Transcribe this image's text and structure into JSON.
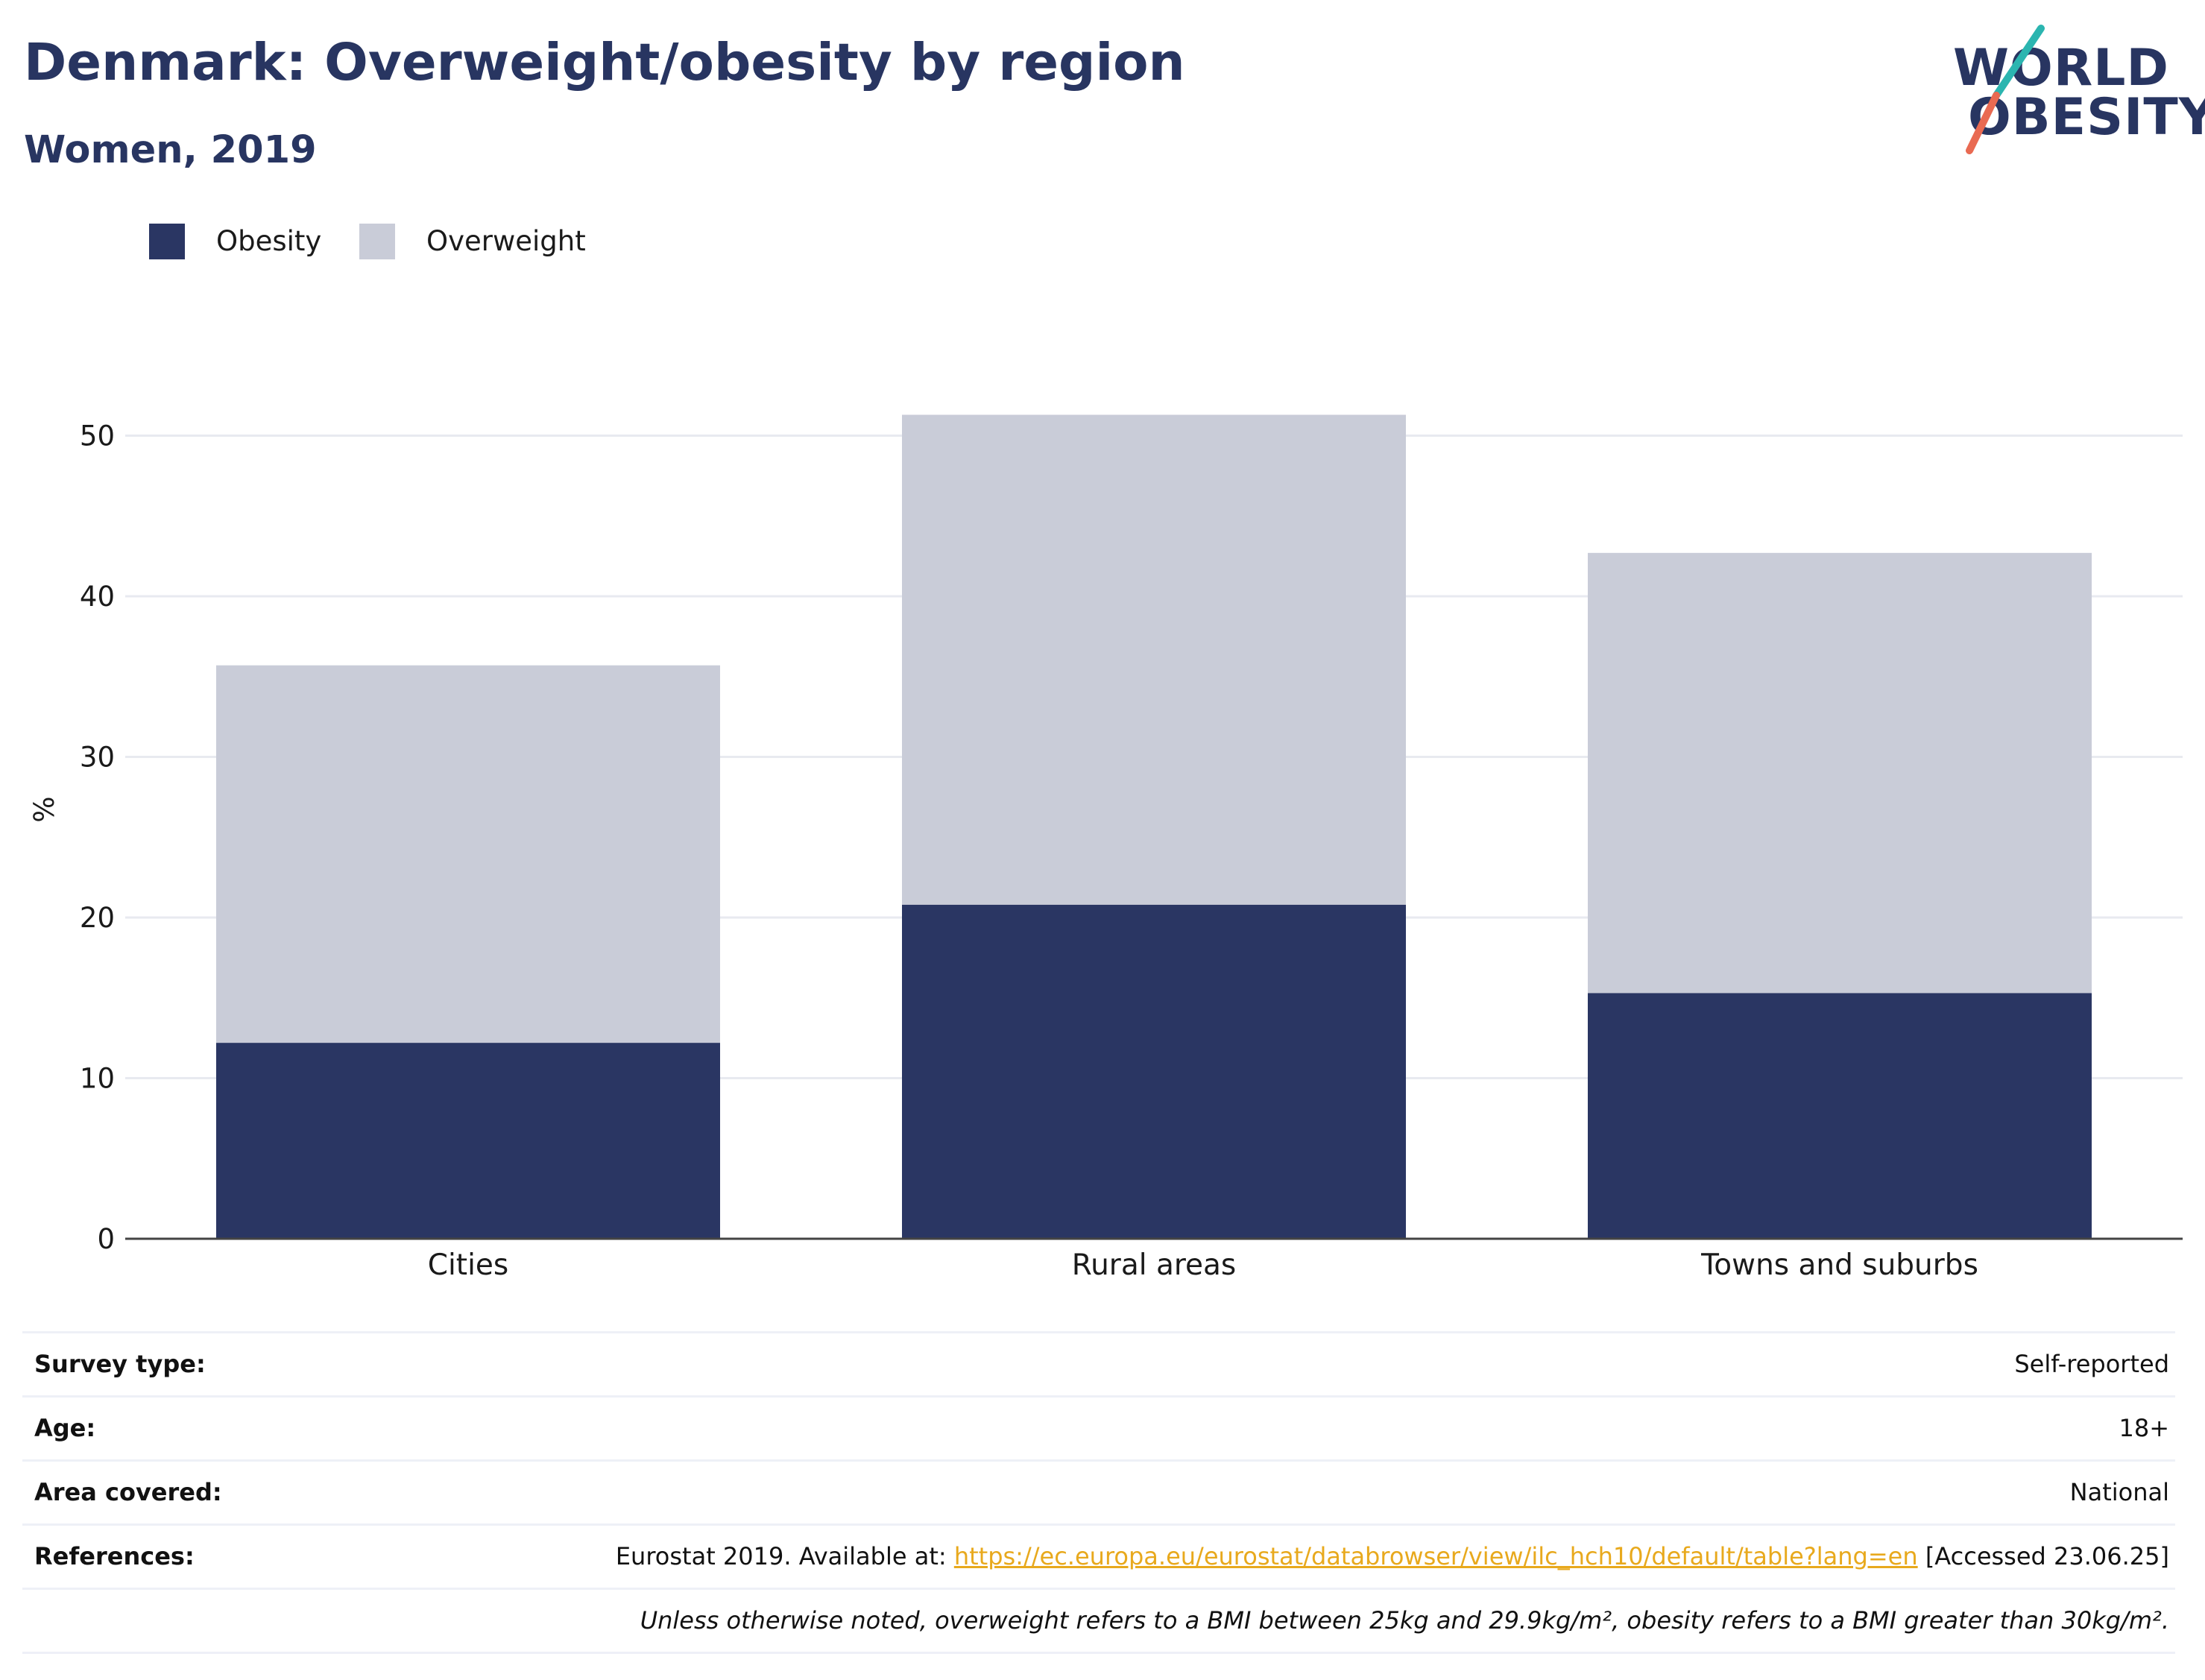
{
  "header": {
    "title": "Denmark: Overweight/obesity by region",
    "subtitle": "Women, 2019"
  },
  "logo": {
    "line1": "WORLD",
    "line2": "OBESITY"
  },
  "colors": {
    "obesity": "#2a3663",
    "overweight": "#c9ccd8",
    "text": "#283561",
    "link": "#e8a91d"
  },
  "chart_data": {
    "type": "bar",
    "stacked": true,
    "categories": [
      "Cities",
      "Rural areas",
      "Towns and suburbs"
    ],
    "series": [
      {
        "name": "Obesity",
        "values": [
          12.2,
          20.8,
          15.3
        ]
      },
      {
        "name": "Overweight",
        "values": [
          23.5,
          30.5,
          27.4
        ]
      }
    ],
    "ylabel": "%",
    "ylim": [
      0,
      55
    ],
    "yticks": [
      0,
      10,
      20,
      30,
      40,
      50
    ],
    "grid": true,
    "legend_position": "top-left"
  },
  "info": {
    "survey_type_label": "Survey type:",
    "survey_type_value": "Self-reported",
    "age_label": "Age:",
    "age_value": "18+",
    "area_label": "Area covered:",
    "area_value": "National",
    "references_label": "References:",
    "references_prefix": "Eurostat 2019. Available at:",
    "references_link": "https://ec.europa.eu/eurostat/databrowser/view/ilc_hch10/default/table?lang=en",
    "references_suffix": "[Accessed 23.06.25]",
    "note": "Unless otherwise noted, overweight refers to a BMI between 25kg and 29.9kg/m², obesity refers to a BMI greater than 30kg/m²."
  }
}
